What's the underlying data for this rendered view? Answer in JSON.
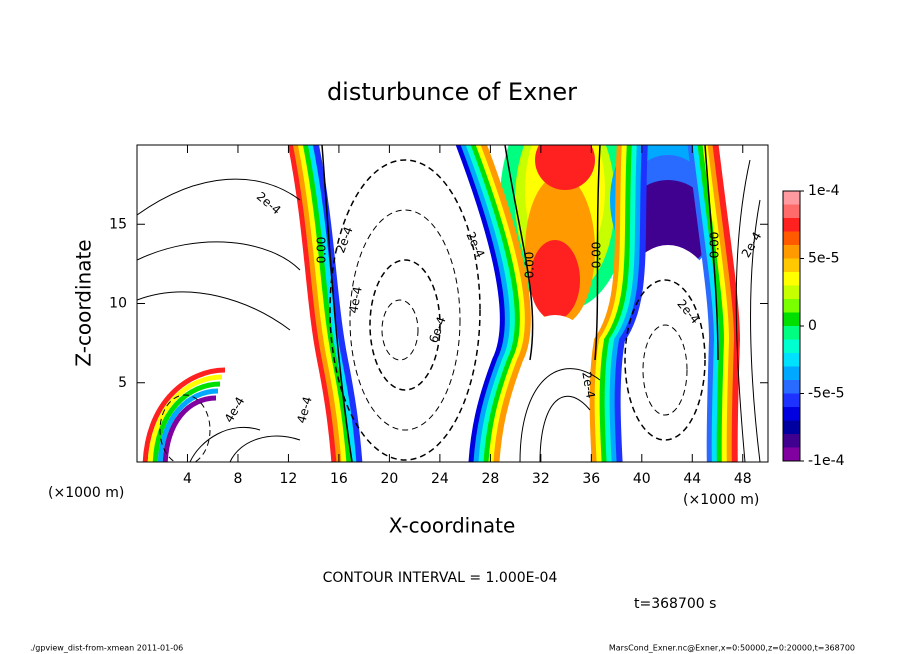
{
  "chart_data": {
    "type": "contour",
    "title": "disturbunce of Exner",
    "xlabel": "X-coordinate",
    "ylabel": "Z-coordinate",
    "x_unit": "(×1000 m)",
    "xlim": [
      0,
      50
    ],
    "xticks": [
      4,
      8,
      12,
      16,
      20,
      24,
      28,
      32,
      36,
      40,
      44,
      48
    ],
    "ylim": [
      0,
      20
    ],
    "yticks": [
      5,
      10,
      15
    ],
    "colorbar": {
      "lim": [
        -0.0001,
        0.0001
      ],
      "ticks": [
        {
          "value": 0.0001,
          "label": "1e-4"
        },
        {
          "value": 5e-05,
          "label": "5e-5"
        },
        {
          "value": 0,
          "label": "0"
        },
        {
          "value": -5e-05,
          "label": "-5e-5"
        },
        {
          "value": -0.0001,
          "label": "-1e-4"
        }
      ],
      "colors": [
        "#ff9aa0",
        "#ff6b6b",
        "#ff2020",
        "#ff5a00",
        "#ff9a00",
        "#ffc800",
        "#ffff00",
        "#c8ff00",
        "#7aff00",
        "#00e000",
        "#00ff80",
        "#00ffd0",
        "#00e0ff",
        "#00a8ff",
        "#2a6bff",
        "#1e32ff",
        "#0000e0",
        "#0000a0",
        "#400090",
        "#8000a0"
      ]
    },
    "contour_labels": [
      "2e-4",
      "0.00",
      "2e-4",
      "4e-4",
      "2e-4",
      "6e-4",
      "0.00",
      "0.00",
      "0.00",
      "2e-4",
      "2e-4",
      "2e-4",
      "4e-4",
      "4e-4"
    ],
    "contour_interval": "CONTOUR INTERVAL = 1.000E-04",
    "time": "t=368700 s",
    "footer_left": "./gpview_dist-from-xmean  2011-01-06",
    "footer_right": "MarsCond_Exner.nc@Exner,x=0:50000,z=0:20000,t=368700"
  }
}
